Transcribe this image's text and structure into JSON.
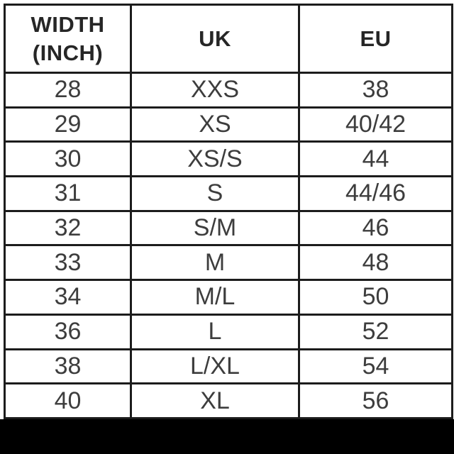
{
  "colors": {
    "background": "#ffffff",
    "table_border": "#1c1c1c",
    "header_text": "#262626",
    "cell_text": "#3d3d3d",
    "bottom_band": "#000000"
  },
  "table": {
    "header": {
      "width": "WIDTH\n(INCH)",
      "uk": "UK",
      "eu": "EU"
    },
    "rows": [
      {
        "width": "28",
        "uk": "XXS",
        "eu": "38"
      },
      {
        "width": "29",
        "uk": "XS",
        "eu": "40/42"
      },
      {
        "width": "30",
        "uk": "XS/S",
        "eu": "44"
      },
      {
        "width": "31",
        "uk": "S",
        "eu": "44/46"
      },
      {
        "width": "32",
        "uk": "S/M",
        "eu": "46"
      },
      {
        "width": "33",
        "uk": "M",
        "eu": "48"
      },
      {
        "width": "34",
        "uk": "M/L",
        "eu": "50"
      },
      {
        "width": "36",
        "uk": "L",
        "eu": "52"
      },
      {
        "width": "38",
        "uk": "L/XL",
        "eu": "54"
      },
      {
        "width": "40",
        "uk": "XL",
        "eu": "56"
      }
    ]
  },
  "chart_data": {
    "type": "table",
    "columns": [
      "WIDTH (INCH)",
      "UK",
      "EU"
    ],
    "rows": [
      [
        "28",
        "XXS",
        "38"
      ],
      [
        "29",
        "XS",
        "40/42"
      ],
      [
        "30",
        "XS/S",
        "44"
      ],
      [
        "31",
        "S",
        "44/46"
      ],
      [
        "32",
        "S/M",
        "46"
      ],
      [
        "33",
        "M",
        "48"
      ],
      [
        "34",
        "M/L",
        "50"
      ],
      [
        "36",
        "L",
        "52"
      ],
      [
        "38",
        "L/XL",
        "54"
      ],
      [
        "40",
        "XL",
        "56"
      ]
    ]
  }
}
